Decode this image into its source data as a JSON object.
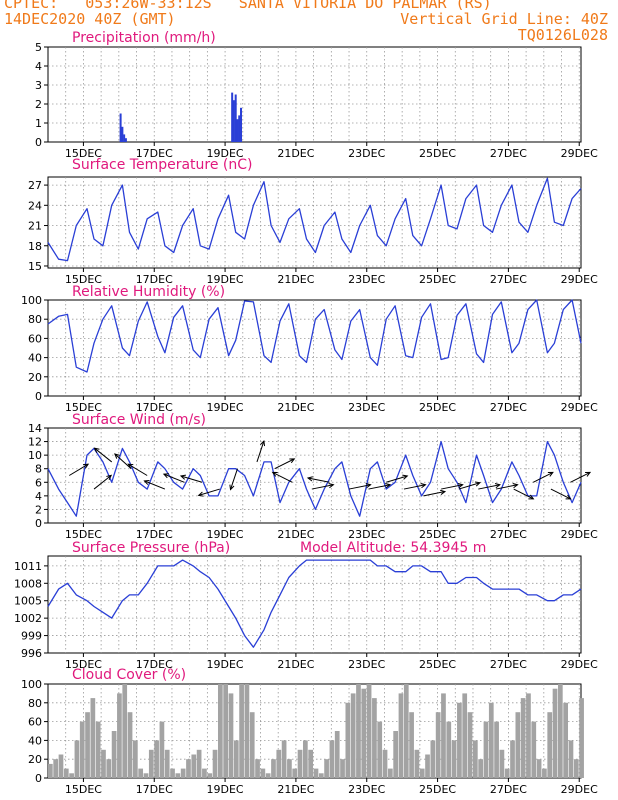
{
  "header": {
    "line1": "CPTEC:   053:26W-33:12S   SANTA VITORIA DO PALMAR (RS)",
    "line2_left": "14DEC2020 40Z (GMT)",
    "line2_right": "Vertical Grid Line: 40Z",
    "line3_right": "TQ0126L028"
  },
  "colors": {
    "header": "#f07a1a",
    "title": "#e0197d",
    "series": "#2a3fd6",
    "cloud": "#a3a3a3",
    "grid": "#9a9a9a"
  },
  "x_axis": {
    "range_days": [
      14.0,
      29.05
    ],
    "ticks": [
      "15DEC",
      "17DEC",
      "19DEC",
      "21DEC",
      "23DEC",
      "25DEC",
      "27DEC",
      "29DEC"
    ],
    "tick_days": [
      15,
      17,
      19,
      21,
      23,
      25,
      27,
      29
    ]
  },
  "chart_data": [
    {
      "id": "precip",
      "type": "bar",
      "title": "Precipitation (mm/h)",
      "ylim": [
        0,
        5
      ],
      "yticks": [
        0,
        1,
        2,
        3,
        4,
        5
      ],
      "x": [
        16.05,
        16.1,
        16.15,
        16.2,
        19.2,
        19.25,
        19.3,
        19.35,
        19.4,
        19.45
      ],
      "values": [
        1.5,
        0.8,
        0.4,
        0.2,
        2.6,
        2.2,
        2.5,
        1.2,
        1.4,
        1.8
      ]
    },
    {
      "id": "temperature",
      "type": "line",
      "title": "Surface Temperature (nC)",
      "ylim": [
        14.7,
        28.2
      ],
      "yticks": [
        15,
        18,
        21,
        24,
        27
      ],
      "x": [
        14.0,
        14.3,
        14.55,
        14.8,
        15.1,
        15.3,
        15.55,
        15.8,
        16.1,
        16.3,
        16.55,
        16.8,
        17.1,
        17.3,
        17.55,
        17.8,
        18.1,
        18.3,
        18.55,
        18.8,
        19.1,
        19.3,
        19.55,
        19.8,
        20.1,
        20.3,
        20.55,
        20.8,
        21.1,
        21.3,
        21.55,
        21.8,
        22.1,
        22.3,
        22.55,
        22.8,
        23.1,
        23.3,
        23.55,
        23.8,
        24.1,
        24.3,
        24.55,
        24.8,
        25.1,
        25.3,
        25.55,
        25.8,
        26.1,
        26.3,
        26.55,
        26.8,
        27.1,
        27.3,
        27.55,
        27.8,
        28.1,
        28.3,
        28.55,
        28.8,
        29.05
      ],
      "values": [
        18.5,
        16.0,
        15.8,
        21.0,
        23.5,
        19.0,
        18.0,
        24.0,
        27.0,
        20.0,
        17.5,
        22.0,
        23.0,
        18.0,
        17.0,
        21.0,
        23.5,
        18.0,
        17.5,
        22.0,
        25.5,
        20.0,
        19.0,
        24.0,
        27.5,
        21.0,
        18.5,
        22.0,
        23.5,
        19.0,
        17.0,
        21.0,
        23.0,
        19.0,
        17.0,
        21.0,
        24.0,
        19.5,
        18.0,
        22.0,
        25.0,
        19.5,
        18.0,
        22.0,
        27.0,
        21.0,
        20.5,
        25.0,
        27.0,
        21.0,
        20.0,
        24.0,
        27.0,
        21.5,
        20.0,
        24.0,
        28.0,
        21.5,
        21.0,
        25.0,
        26.5
      ]
    },
    {
      "id": "humidity",
      "type": "line",
      "title": "Relative Humidity (%)",
      "ylim": [
        0,
        100
      ],
      "yticks": [
        0,
        20,
        40,
        60,
        80,
        100
      ],
      "x": [
        14.0,
        14.3,
        14.55,
        14.8,
        15.1,
        15.3,
        15.55,
        15.8,
        16.1,
        16.3,
        16.55,
        16.8,
        17.1,
        17.3,
        17.55,
        17.8,
        18.1,
        18.3,
        18.55,
        18.8,
        19.1,
        19.3,
        19.55,
        19.8,
        20.1,
        20.3,
        20.55,
        20.8,
        21.1,
        21.3,
        21.55,
        21.8,
        22.1,
        22.3,
        22.55,
        22.8,
        23.1,
        23.3,
        23.55,
        23.8,
        24.1,
        24.3,
        24.55,
        24.8,
        25.1,
        25.3,
        25.55,
        25.8,
        26.1,
        26.3,
        26.55,
        26.8,
        27.1,
        27.3,
        27.55,
        27.8,
        28.1,
        28.3,
        28.55,
        28.8,
        29.05
      ],
      "values": [
        75,
        83,
        85,
        30,
        25,
        55,
        80,
        94,
        50,
        42,
        78,
        98,
        62,
        45,
        82,
        94,
        48,
        40,
        80,
        92,
        42,
        58,
        99,
        98,
        42,
        35,
        78,
        96,
        42,
        35,
        80,
        90,
        48,
        38,
        78,
        90,
        40,
        32,
        80,
        94,
        42,
        40,
        82,
        96,
        38,
        40,
        84,
        96,
        44,
        35,
        85,
        98,
        45,
        55,
        90,
        100,
        45,
        55,
        90,
        100,
        55
      ]
    },
    {
      "id": "wind",
      "type": "line",
      "title": "Surface Wind (m/s)",
      "ylim": [
        0,
        14
      ],
      "yticks": [
        0,
        2,
        4,
        6,
        8,
        10,
        12,
        14
      ],
      "x": [
        14.0,
        14.3,
        14.55,
        14.8,
        15.1,
        15.3,
        15.55,
        15.8,
        16.1,
        16.3,
        16.55,
        16.8,
        17.1,
        17.3,
        17.55,
        17.8,
        18.1,
        18.3,
        18.55,
        18.8,
        19.1,
        19.3,
        19.55,
        19.8,
        20.1,
        20.3,
        20.55,
        20.8,
        21.1,
        21.3,
        21.55,
        21.8,
        22.1,
        22.3,
        22.55,
        22.8,
        23.1,
        23.3,
        23.55,
        23.8,
        24.1,
        24.3,
        24.55,
        24.8,
        25.1,
        25.3,
        25.55,
        25.8,
        26.1,
        26.3,
        26.55,
        26.8,
        27.1,
        27.3,
        27.55,
        27.8,
        28.1,
        28.3,
        28.55,
        28.8,
        29.05
      ],
      "values": [
        8,
        5,
        3,
        1,
        10,
        11,
        9,
        6,
        11,
        9,
        6,
        5,
        9,
        8,
        6,
        5,
        8,
        7,
        4,
        4,
        8,
        8,
        7,
        4,
        9,
        9,
        3,
        6,
        8,
        5,
        2,
        5,
        8,
        9,
        4,
        1,
        8,
        9,
        5,
        6,
        10,
        7,
        4,
        6,
        12,
        8,
        6,
        3,
        10,
        7,
        3,
        5,
        9,
        7,
        4,
        4,
        12,
        10,
        6,
        3,
        6
      ],
      "arrows": {
        "x": [
          14.6,
          15.3,
          15.8,
          16.35,
          16.8,
          17.3,
          17.85,
          18.35,
          18.85,
          19.35,
          19.9,
          20.4,
          20.9,
          21.45,
          21.95,
          22.5,
          23.05,
          23.55,
          24.05,
          24.6,
          25.1,
          25.6,
          26.15,
          26.65,
          27.15,
          27.7,
          28.2,
          28.75
        ],
        "y": [
          7,
          5,
          9,
          8,
          7,
          5,
          6,
          6,
          5,
          8,
          9,
          8,
          6,
          5,
          6,
          5,
          5,
          6,
          5,
          4,
          5,
          5,
          5,
          5,
          5,
          6,
          5,
          6
        ],
        "u": [
          1.0,
          1.0,
          -1.0,
          -1.0,
          -1.0,
          -1.0,
          -1.0,
          -1.0,
          -1.0,
          -0.3,
          0.3,
          1.0,
          -1.0,
          1.0,
          -1.0,
          1.0,
          1.0,
          1.0,
          1.0,
          1.0,
          1.0,
          1.0,
          1.0,
          1.0,
          1.0,
          1.0,
          1.0,
          1.0
        ],
        "v": [
          0.6,
          0.8,
          0.8,
          0.9,
          0.6,
          0.4,
          0.4,
          0.3,
          -0.3,
          -0.9,
          0.9,
          0.5,
          0.5,
          0.2,
          0.2,
          0.2,
          0.2,
          0.3,
          0.2,
          0.2,
          0.2,
          0.3,
          0.2,
          0.2,
          -0.5,
          0.5,
          -0.5,
          0.5
        ]
      }
    },
    {
      "id": "pressure",
      "type": "line",
      "title": "Surface Pressure (hPa)",
      "annotation": "Model Altitude: 54.3945 m",
      "ylim": [
        996,
        1012.7
      ],
      "yticks": [
        996,
        999,
        1002,
        1005,
        1008,
        1011
      ],
      "x": [
        14.0,
        14.3,
        14.55,
        14.8,
        15.1,
        15.3,
        15.55,
        15.8,
        16.1,
        16.3,
        16.55,
        16.8,
        17.1,
        17.3,
        17.55,
        17.8,
        18.1,
        18.3,
        18.55,
        18.8,
        19.1,
        19.3,
        19.55,
        19.8,
        20.1,
        20.3,
        20.55,
        20.8,
        21.1,
        21.3,
        21.55,
        21.8,
        22.1,
        22.3,
        22.55,
        22.8,
        23.1,
        23.3,
        23.55,
        23.8,
        24.1,
        24.3,
        24.55,
        24.8,
        25.1,
        25.3,
        25.55,
        25.8,
        26.1,
        26.3,
        26.55,
        26.8,
        27.1,
        27.3,
        27.55,
        27.8,
        28.1,
        28.3,
        28.55,
        28.8,
        29.05
      ],
      "values": [
        1004,
        1007,
        1008,
        1006,
        1005,
        1004,
        1003,
        1002,
        1005,
        1006,
        1006,
        1008,
        1011,
        1011,
        1011,
        1012,
        1011,
        1010,
        1009,
        1007,
        1004,
        1002,
        999,
        997,
        1000,
        1003,
        1006,
        1009,
        1011,
        1012,
        1012,
        1012,
        1012,
        1012,
        1012,
        1012,
        1012,
        1011,
        1011,
        1010,
        1010,
        1011,
        1011,
        1010,
        1010,
        1008,
        1008,
        1009,
        1009,
        1008,
        1007,
        1007,
        1007,
        1007,
        1006,
        1006,
        1005,
        1005,
        1006,
        1006,
        1007
      ]
    },
    {
      "id": "cloud",
      "type": "bar",
      "title": "Cloud Cover (%)",
      "ylim": [
        0,
        100
      ],
      "yticks": [
        0,
        20,
        40,
        60,
        80,
        100
      ],
      "x": [
        14.0,
        14.15,
        14.3,
        14.45,
        14.6,
        14.75,
        14.9,
        15.05,
        15.2,
        15.35,
        15.5,
        15.65,
        15.8,
        15.95,
        16.1,
        16.25,
        16.4,
        16.55,
        16.7,
        16.85,
        17.0,
        17.15,
        17.3,
        17.45,
        17.6,
        17.75,
        17.9,
        18.05,
        18.2,
        18.35,
        18.5,
        18.65,
        18.8,
        18.95,
        19.1,
        19.25,
        19.4,
        19.55,
        19.7,
        19.85,
        20.0,
        20.15,
        20.3,
        20.45,
        20.6,
        20.75,
        20.9,
        21.05,
        21.2,
        21.35,
        21.5,
        21.65,
        21.8,
        21.95,
        22.1,
        22.25,
        22.4,
        22.55,
        22.7,
        22.85,
        23.0,
        23.15,
        23.3,
        23.45,
        23.6,
        23.75,
        23.9,
        24.05,
        24.2,
        24.35,
        24.5,
        24.65,
        24.8,
        24.95,
        25.1,
        25.25,
        25.4,
        25.55,
        25.7,
        25.85,
        26.0,
        26.15,
        26.3,
        26.45,
        26.6,
        26.75,
        26.9,
        27.05,
        27.2,
        27.35,
        27.5,
        27.65,
        27.8,
        27.95,
        28.1,
        28.25,
        28.4,
        28.55,
        28.7,
        28.85,
        29.0
      ],
      "values": [
        15,
        20,
        25,
        10,
        5,
        40,
        60,
        70,
        85,
        60,
        30,
        20,
        50,
        90,
        100,
        70,
        40,
        10,
        5,
        30,
        40,
        60,
        30,
        10,
        5,
        10,
        20,
        25,
        30,
        10,
        5,
        30,
        100,
        100,
        90,
        40,
        100,
        100,
        70,
        20,
        10,
        5,
        20,
        30,
        40,
        20,
        10,
        30,
        40,
        30,
        10,
        5,
        20,
        40,
        50,
        20,
        80,
        90,
        100,
        95,
        100,
        85,
        60,
        30,
        10,
        50,
        90,
        100,
        70,
        30,
        10,
        25,
        40,
        70,
        90,
        60,
        40,
        80,
        90,
        70,
        40,
        20,
        60,
        80,
        60,
        30,
        10,
        40,
        70,
        85,
        90,
        60,
        20,
        10,
        70,
        95,
        100,
        80,
        40,
        20,
        85
      ]
    }
  ]
}
